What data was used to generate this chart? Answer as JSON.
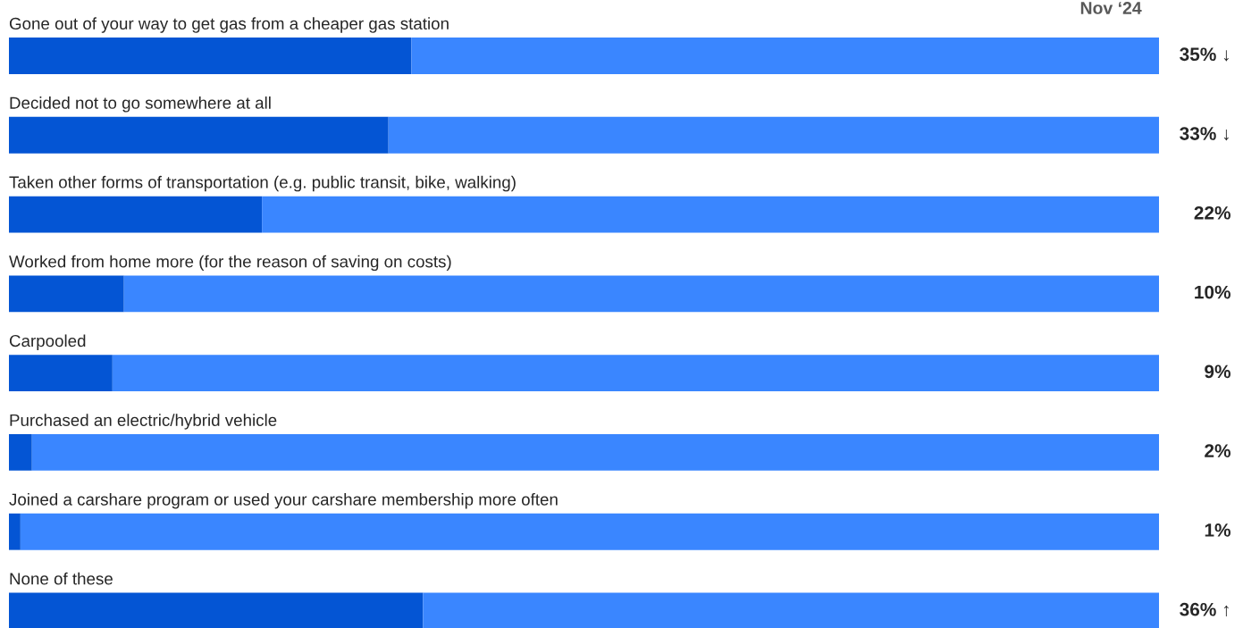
{
  "chart_data": {
    "type": "bar",
    "orientation": "horizontal",
    "stacked": true,
    "legend": false,
    "annotations": [
      "Nov ‘24"
    ],
    "categories": [
      "Gone out of your way to get gas from a cheaper gas station",
      "Decided not to go somewhere at all",
      "Taken other forms of transportation (e.g. public transit, bike, walking)",
      "Worked from home more (for the reason of saving on costs)",
      "Carpooled",
      "Purchased an electric/hybrid vehicle",
      "Joined a carshare program or used your carshare membership more often",
      "None of these"
    ],
    "xlim": [
      0,
      100
    ],
    "series": [
      {
        "color": "#0455d4",
        "values": [
          35,
          33,
          22,
          10,
          9,
          2,
          1,
          36
        ],
        "value_labels": [
          "35% ↓",
          "33% ↓",
          "22%",
          "10%",
          "9%",
          "2%",
          "1%",
          "36% ↑"
        ]
      },
      {
        "color": "#3a86ff",
        "values": [
          65,
          67,
          78,
          90,
          91,
          98,
          99,
          64
        ]
      }
    ]
  }
}
